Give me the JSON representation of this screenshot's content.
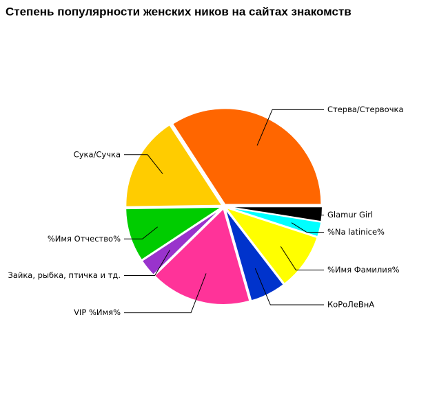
{
  "chart_data": {
    "type": "pie",
    "title": "Степень популярности женских ников на сайтах знакомств",
    "categories": [
      "Glamur Girl",
      "%Na latinice%",
      "%Имя Фамилия%",
      "КоРоЛеВнА",
      "VIP %Имя%",
      "Зайка, рыбка, птичка и тд.",
      "%Имя Отчество%",
      "Сука/Сучка",
      "Стерва/Стервочка"
    ],
    "values": [
      2.5,
      2.5,
      9.5,
      6,
      17,
      3,
      9,
      16,
      34
    ],
    "colors": [
      "#000000",
      "#00ffff",
      "#ffff00",
      "#0033cc",
      "#ff3399",
      "#9933cc",
      "#00cc00",
      "#ffcc00",
      "#ff6600"
    ]
  }
}
